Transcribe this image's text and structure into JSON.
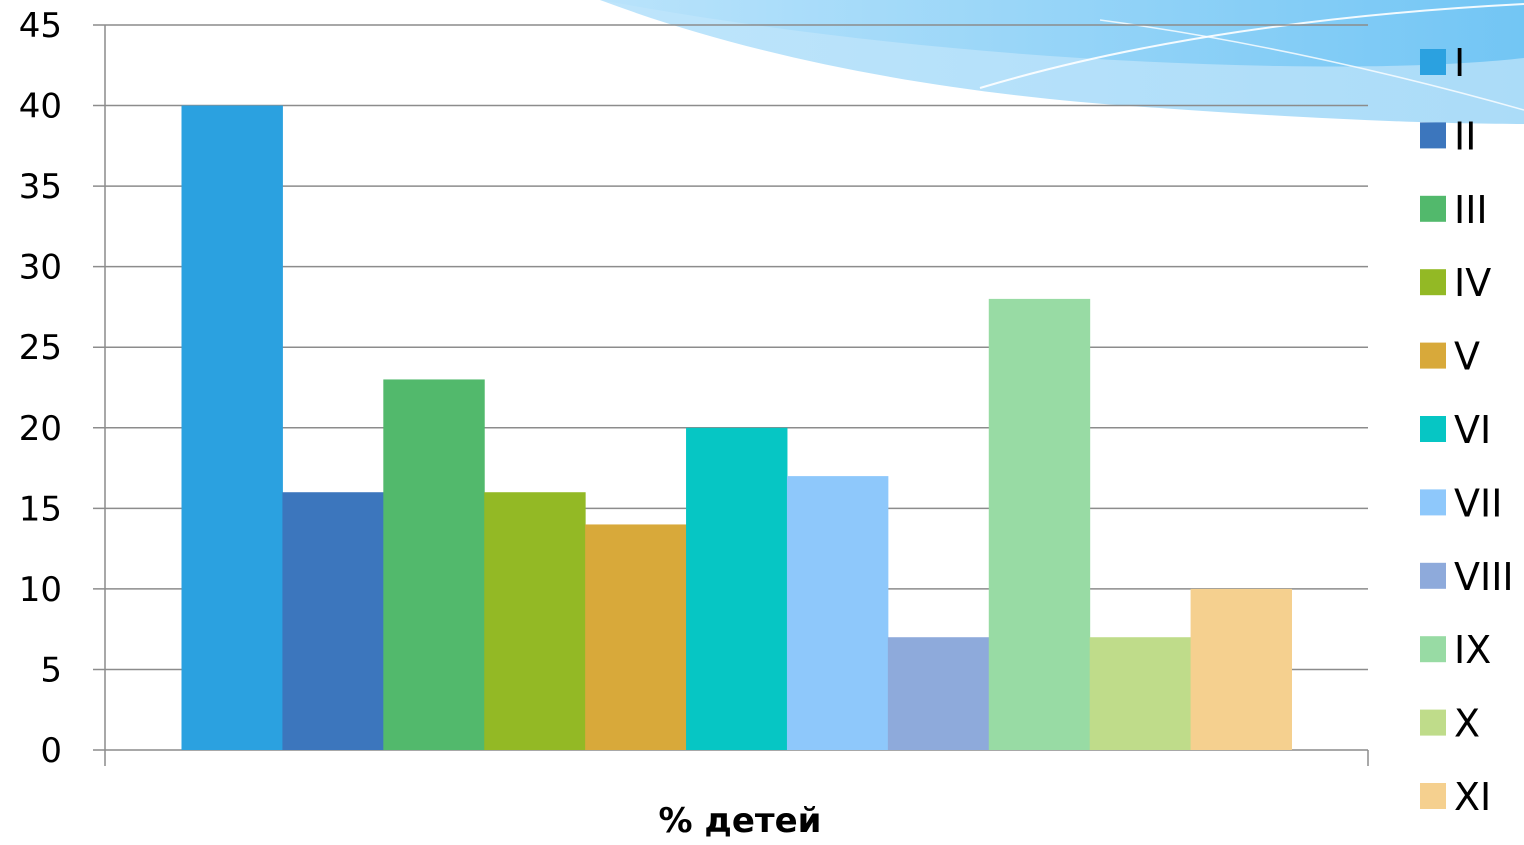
{
  "chart_data": {
    "type": "bar",
    "categories": [
      ""
    ],
    "xlabel": "% детей",
    "ylabel": "",
    "ylim": [
      0,
      45
    ],
    "yticks": [
      0,
      5,
      10,
      15,
      20,
      25,
      30,
      35,
      40,
      45
    ],
    "grid": true,
    "legend_position": "right",
    "series": [
      {
        "name": "I",
        "values": [
          40
        ],
        "color": "#2ba1e0"
      },
      {
        "name": "II",
        "values": [
          16
        ],
        "color": "#3c76bd"
      },
      {
        "name": "III",
        "values": [
          23
        ],
        "color": "#52b96c"
      },
      {
        "name": "IV",
        "values": [
          16
        ],
        "color": "#93b925"
      },
      {
        "name": "V",
        "values": [
          14
        ],
        "color": "#d8a93a"
      },
      {
        "name": "VI",
        "values": [
          20
        ],
        "color": "#06c6c4"
      },
      {
        "name": "VII",
        "values": [
          17
        ],
        "color": "#8ec8fb"
      },
      {
        "name": "VIII",
        "values": [
          7
        ],
        "color": "#8eaadb"
      },
      {
        "name": "IX",
        "values": [
          28
        ],
        "color": "#98dba4"
      },
      {
        "name": "X",
        "values": [
          7
        ],
        "color": "#bfdc8a"
      },
      {
        "name": "XI",
        "values": [
          10
        ],
        "color": "#f5d08f"
      }
    ]
  }
}
